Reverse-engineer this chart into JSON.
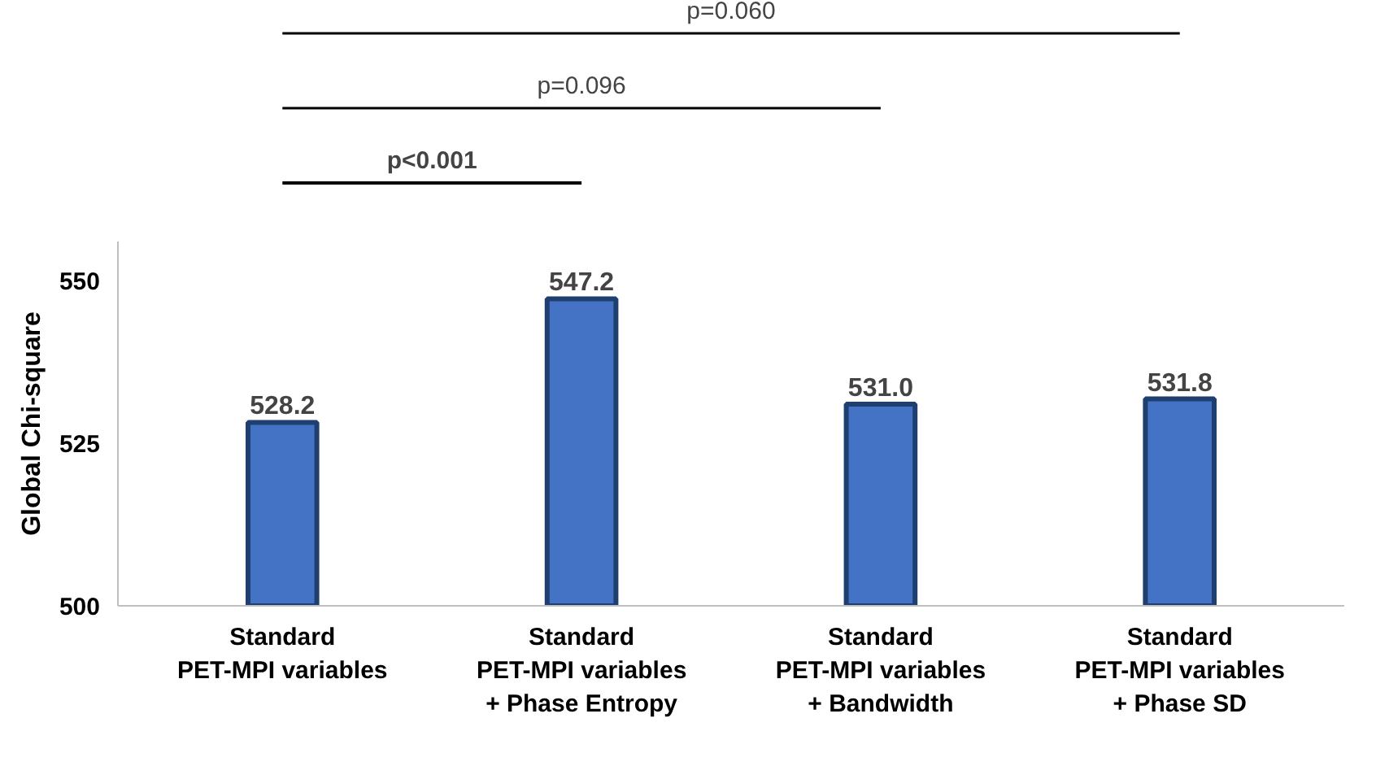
{
  "chart_data": {
    "type": "bar",
    "ylabel": "Global Chi-square",
    "categories": [
      "Standard\nPET-MPI variables",
      "Standard\nPET-MPI variables\n+ Phase Entropy",
      "Standard\nPET-MPI variables\n+ Bandwidth",
      "Standard\nPET-MPI variables\n+ Phase SD"
    ],
    "values": [
      528.2,
      547.2,
      531.0,
      531.8
    ],
    "color": "#4472c4",
    "value_labels": [
      "528.2",
      "547.2",
      "531.0",
      "531.8"
    ],
    "ylim": [
      500,
      556
    ],
    "yticks": [
      500,
      525,
      550
    ],
    "grid": false,
    "annotations": [
      "p<0.001",
      "p=0.096",
      "p=0.060"
    ]
  }
}
